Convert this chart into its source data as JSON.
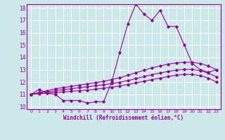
{
  "background_color": "#cce8e8",
  "grid_color": "#ffffff",
  "line_color": "#990099",
  "xlabel": "Windchill (Refroidissement éolien,°C)",
  "xlim": [
    -0.5,
    23.5
  ],
  "ylim": [
    9.8,
    18.3
  ],
  "xticks": [
    0,
    1,
    2,
    3,
    4,
    5,
    6,
    7,
    8,
    9,
    10,
    11,
    12,
    13,
    14,
    15,
    16,
    17,
    18,
    19,
    20,
    21,
    22,
    23
  ],
  "yticks": [
    10,
    11,
    12,
    13,
    14,
    15,
    16,
    17,
    18
  ],
  "series": [
    {
      "x": [
        0,
        1,
        2,
        3,
        4,
        5,
        6,
        7,
        8,
        9,
        10,
        11,
        12,
        13,
        14,
        15,
        16,
        17,
        18,
        19,
        20,
        21,
        22,
        23
      ],
      "y": [
        11.0,
        11.4,
        11.1,
        11.0,
        10.5,
        10.5,
        10.5,
        10.3,
        10.4,
        10.4,
        12.0,
        14.4,
        16.7,
        18.3,
        17.5,
        17.0,
        17.8,
        16.5,
        16.5,
        15.0,
        13.5,
        13.0,
        12.8,
        13.0
      ]
    },
    {
      "x": [
        0,
        1,
        2,
        3,
        4,
        5,
        6,
        7,
        8,
        9,
        10,
        11,
        12,
        13,
        14,
        15,
        16,
        17,
        18,
        19,
        20,
        21,
        22,
        23
      ],
      "y": [
        11.0,
        11.15,
        11.3,
        11.45,
        11.55,
        11.65,
        11.75,
        11.85,
        11.95,
        12.05,
        12.2,
        12.35,
        12.55,
        12.75,
        12.95,
        13.15,
        13.3,
        13.45,
        13.55,
        13.6,
        13.6,
        13.5,
        13.3,
        13.0
      ]
    },
    {
      "x": [
        0,
        1,
        2,
        3,
        4,
        5,
        6,
        7,
        8,
        9,
        10,
        11,
        12,
        13,
        14,
        15,
        16,
        17,
        18,
        19,
        20,
        21,
        22,
        23
      ],
      "y": [
        11.0,
        11.1,
        11.2,
        11.3,
        11.38,
        11.46,
        11.54,
        11.62,
        11.7,
        11.78,
        11.88,
        11.98,
        12.12,
        12.28,
        12.44,
        12.6,
        12.73,
        12.86,
        12.96,
        13.02,
        13.02,
        12.92,
        12.72,
        12.42
      ]
    },
    {
      "x": [
        0,
        1,
        2,
        3,
        4,
        5,
        6,
        7,
        8,
        9,
        10,
        11,
        12,
        13,
        14,
        15,
        16,
        17,
        18,
        19,
        20,
        21,
        22,
        23
      ],
      "y": [
        11.0,
        11.05,
        11.1,
        11.15,
        11.2,
        11.25,
        11.3,
        11.35,
        11.42,
        11.5,
        11.58,
        11.68,
        11.8,
        11.93,
        12.06,
        12.2,
        12.32,
        12.44,
        12.55,
        12.62,
        12.62,
        12.52,
        12.32,
        12.0
      ]
    }
  ]
}
